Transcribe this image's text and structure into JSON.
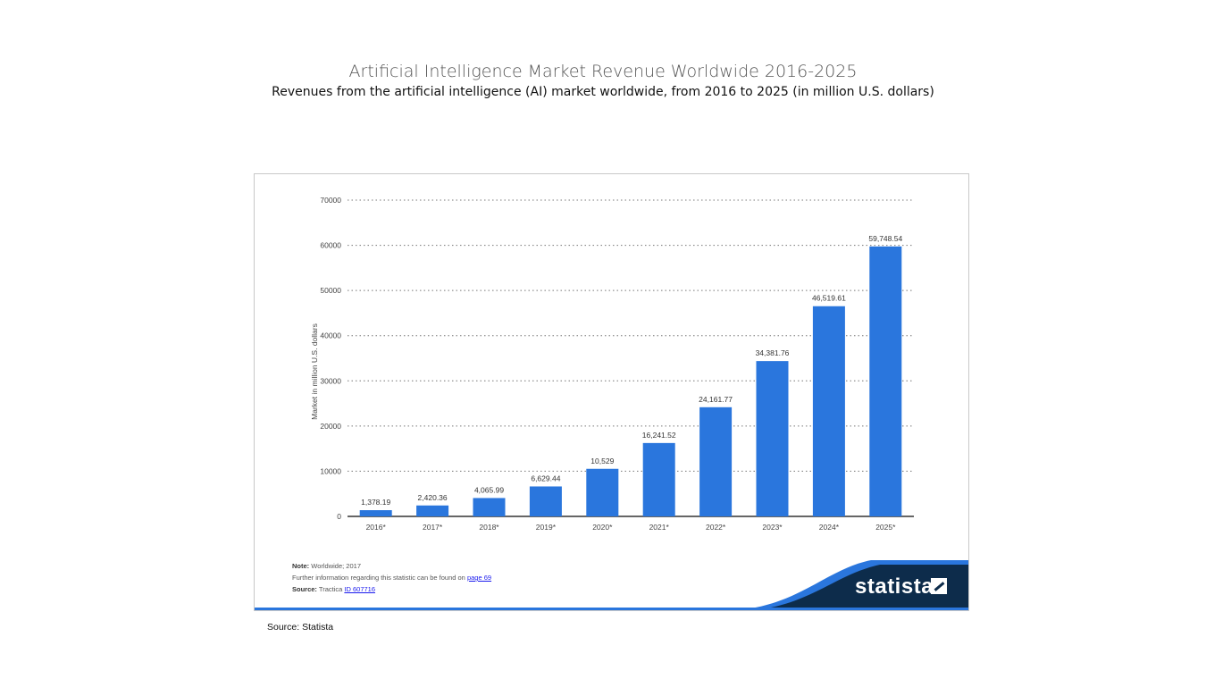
{
  "header": {
    "title": "Artificial Intelligence Market Revenue Worldwide 2016-2025",
    "subtitle": "Revenues from the artificial intelligence (AI) market worldwide, from 2016 to 2025 (in million U.S. dollars)"
  },
  "notes": {
    "note_label": "Note:",
    "note_text": "Worldwide; 2017",
    "further_text": "Further information regarding this statistic can be found on",
    "further_link": "page 69",
    "source_label": "Source:",
    "source_text": "Tractica",
    "source_link": "ID 607716"
  },
  "brand": {
    "name": "statista"
  },
  "footer": {
    "source": "Source: Statista"
  },
  "colors": {
    "bar": "#2a76dd",
    "brand_dark": "#0d2c4b",
    "brand_accent": "#2a76dd"
  },
  "chart_data": {
    "type": "bar",
    "title": "",
    "xlabel": "",
    "ylabel": "Market in million U.S. dollars",
    "categories": [
      "2016*",
      "2017*",
      "2018*",
      "2019*",
      "2020*",
      "2021*",
      "2022*",
      "2023*",
      "2024*",
      "2025*"
    ],
    "values": [
      1378.19,
      2420.36,
      4065.99,
      6629.44,
      10529,
      16241.52,
      24161.77,
      34381.76,
      46519.61,
      59748.54
    ],
    "value_labels": [
      "1,378.19",
      "2,420.36",
      "4,065.99",
      "6,629.44",
      "10,529",
      "16,241.52",
      "24,161.77",
      "34,381.76",
      "46,519.61",
      "59,748.54"
    ],
    "ylim": [
      0,
      70000
    ],
    "yticks": [
      0,
      10000,
      20000,
      30000,
      40000,
      50000,
      60000,
      70000
    ],
    "grid": true,
    "legend": "none"
  }
}
